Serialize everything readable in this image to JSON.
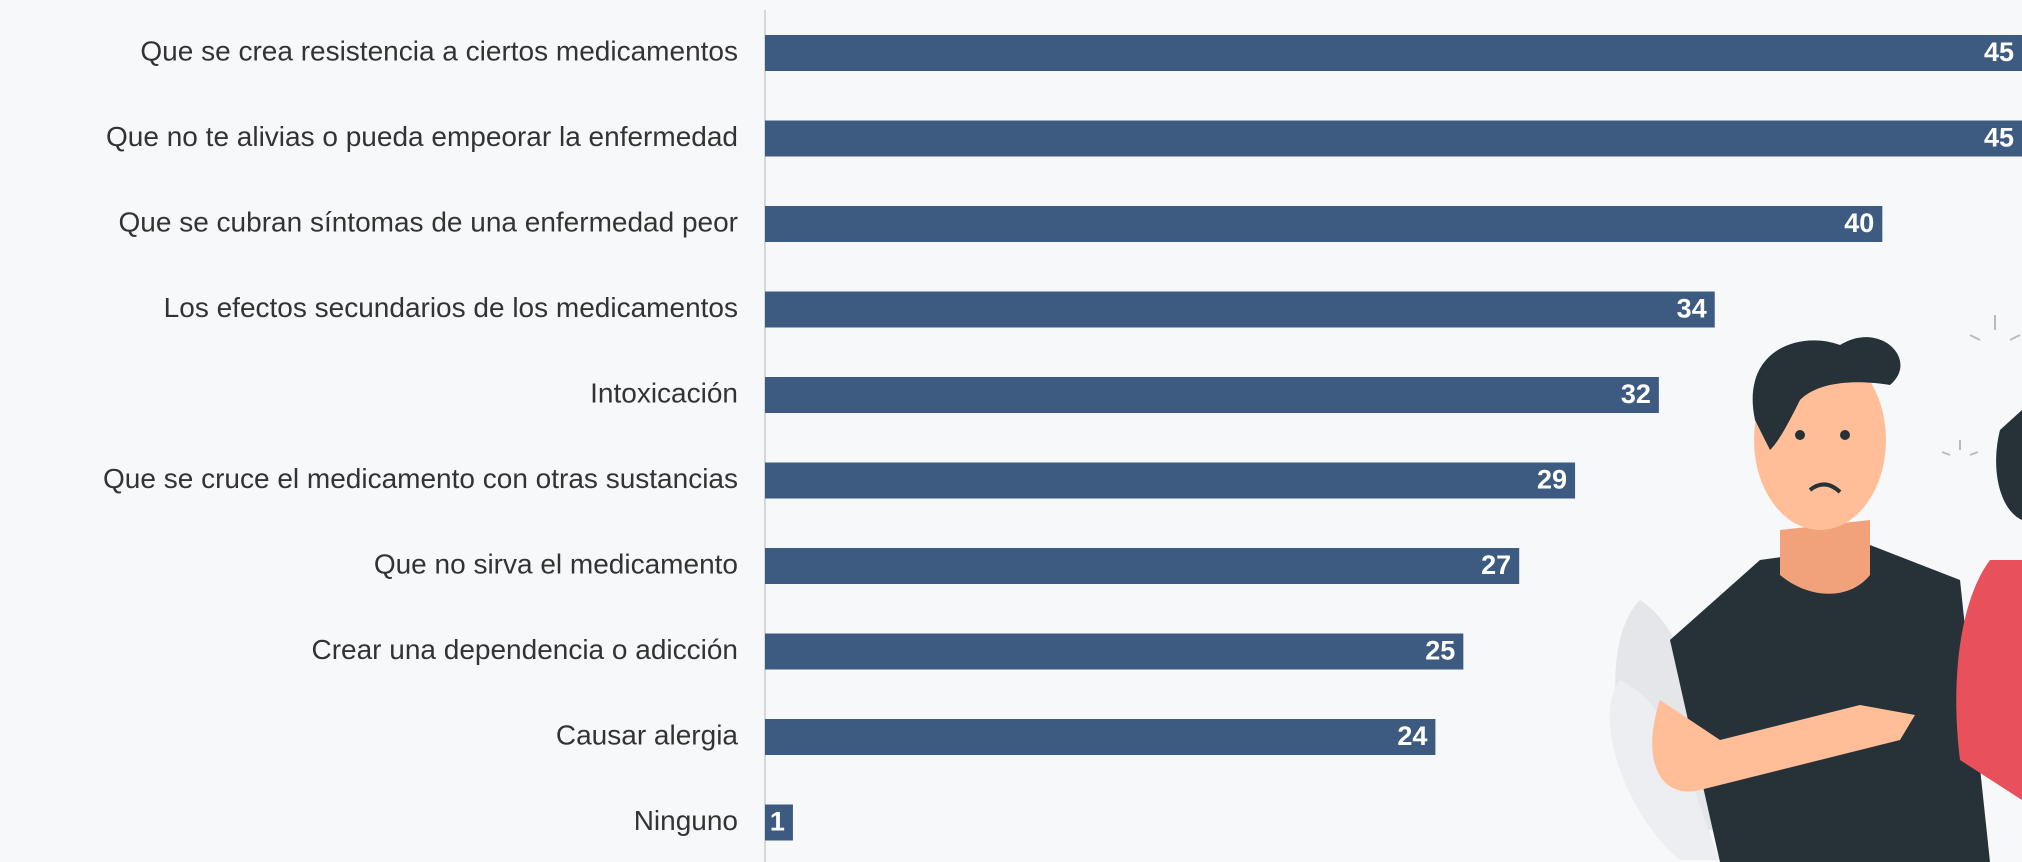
{
  "chart_data": {
    "type": "hbar",
    "categories": [
      "Que se crea resistencia a ciertos medicamentos",
      "Que no te alivias o pueda empeorar la enfermedad",
      "Que se cubran síntomas de una enfermedad peor",
      "Los efectos secundarios de los medicamentos",
      "Intoxicación",
      "Que se cruce el medicamento con otras sustancias",
      "Que no sirva el medicamento",
      "Crear una dependencia o adicción",
      "Causar alergia",
      "Ninguno"
    ],
    "values": [
      45,
      45,
      40,
      34,
      32,
      29,
      27,
      25,
      24,
      1
    ],
    "color": "#3d5a80",
    "xlim": [
      0,
      45
    ]
  }
}
